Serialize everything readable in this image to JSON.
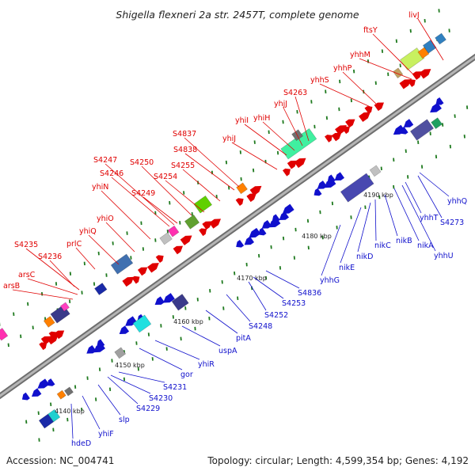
{
  "title": "Shigella flexneri 2a str. 2457T, complete genome",
  "footer": {
    "accession": "Accession: NC_004741",
    "summary": "Topology: circular; Length: 4,599,354 bp; Genes: 4,192"
  },
  "colors": {
    "forward": "#e00000",
    "reverse": "#1010cc",
    "backbone": "#8a8a8a"
  },
  "ticks": [
    "4140 kbp",
    "4150 kbp",
    "4160 kbp",
    "4170 kbp",
    "4180 kbp",
    "4190 kbp"
  ],
  "forward_genes": [
    "arsB",
    "arsC",
    "S4235",
    "S4236",
    "prlC",
    "yhiQ",
    "yhiO",
    "yhiN",
    "S4246",
    "S4247",
    "S4249",
    "S4250",
    "S4254",
    "S4255",
    "S4838",
    "S4837",
    "yhiJ",
    "yhiI",
    "yhiH",
    "yhjJ",
    "S4263",
    "yhhS",
    "yhhP",
    "yhhM",
    "ftsY",
    "livJ"
  ],
  "reverse_genes": [
    "hdeD",
    "yhiF",
    "slp",
    "S4229",
    "S4230",
    "S4231",
    "gor",
    "yhiR",
    "uspA",
    "pitA",
    "S4248",
    "S4252",
    "S4253",
    "S4836",
    "yhhG",
    "nikE",
    "nikD",
    "nikC",
    "nikB",
    "nikA",
    "yhhU",
    "yhhT",
    "S4273",
    "yhhQ"
  ]
}
